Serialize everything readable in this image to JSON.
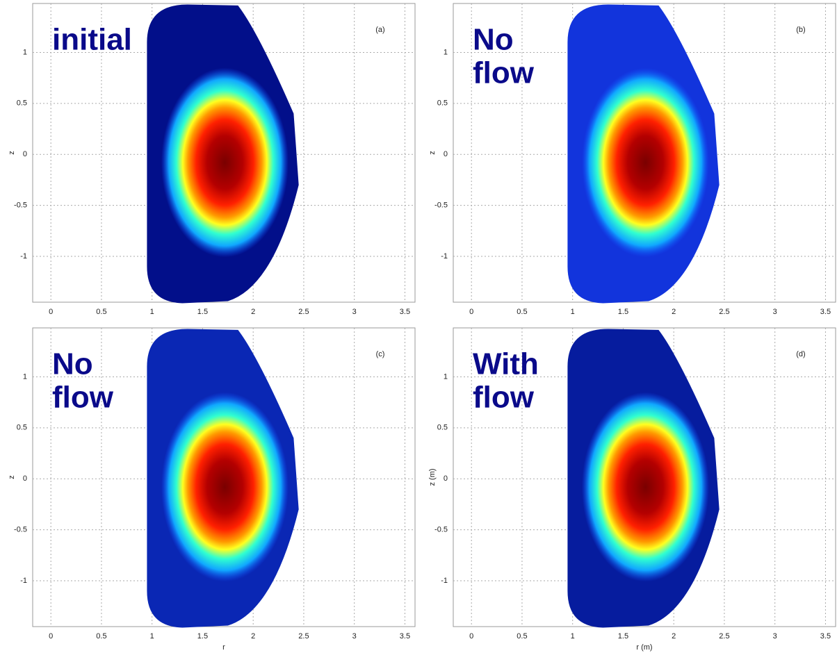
{
  "chart_data": [
    {
      "type": "contour",
      "panel_label": "(a)",
      "annotation": [
        "initial"
      ],
      "color": "#020f8a",
      "ylabel": "z",
      "xlim": [
        -0.18,
        3.6
      ],
      "ylim": [
        -1.45,
        1.48
      ],
      "xticks": [
        0,
        0.5,
        1,
        1.5,
        2,
        2.5,
        3,
        3.5
      ],
      "yticks": [
        -1,
        -0.5,
        0,
        0.5,
        1
      ],
      "grid": true
    },
    {
      "type": "contour",
      "panel_label": "(b)",
      "annotation": [
        "No",
        "flow"
      ],
      "color": "#1234dc",
      "ylabel": "z",
      "xlim": [
        -0.18,
        3.6
      ],
      "ylim": [
        -1.45,
        1.48
      ],
      "xticks": [
        0,
        0.5,
        1,
        1.5,
        2,
        2.5,
        3,
        3.5
      ],
      "yticks": [
        -1,
        -0.5,
        0,
        0.5,
        1
      ],
      "grid": true
    },
    {
      "type": "contour",
      "panel_label": "(c)",
      "annotation": [
        "No",
        "flow"
      ],
      "color": "#0a27b4",
      "ylabel": "z",
      "xlabel": "r",
      "xlim": [
        -0.18,
        3.6
      ],
      "ylim": [
        -1.45,
        1.48
      ],
      "xticks": [
        0,
        0.5,
        1,
        1.5,
        2,
        2.5,
        3,
        3.5
      ],
      "yticks": [
        -1,
        -0.5,
        0,
        0.5,
        1
      ],
      "grid": true
    },
    {
      "type": "contour",
      "panel_label": "(d)",
      "annotation": [
        "With",
        "flow"
      ],
      "color": "#061c9e",
      "ylabel": "z (m)",
      "xlabel": "r (m)",
      "xlim": [
        -0.18,
        3.6
      ],
      "ylim": [
        -1.45,
        1.48
      ],
      "xticks": [
        0,
        0.5,
        1,
        1.5,
        2,
        2.5,
        3,
        3.5
      ],
      "yticks": [
        -1,
        -0.5,
        0,
        0.5,
        1
      ],
      "grid": true
    }
  ]
}
